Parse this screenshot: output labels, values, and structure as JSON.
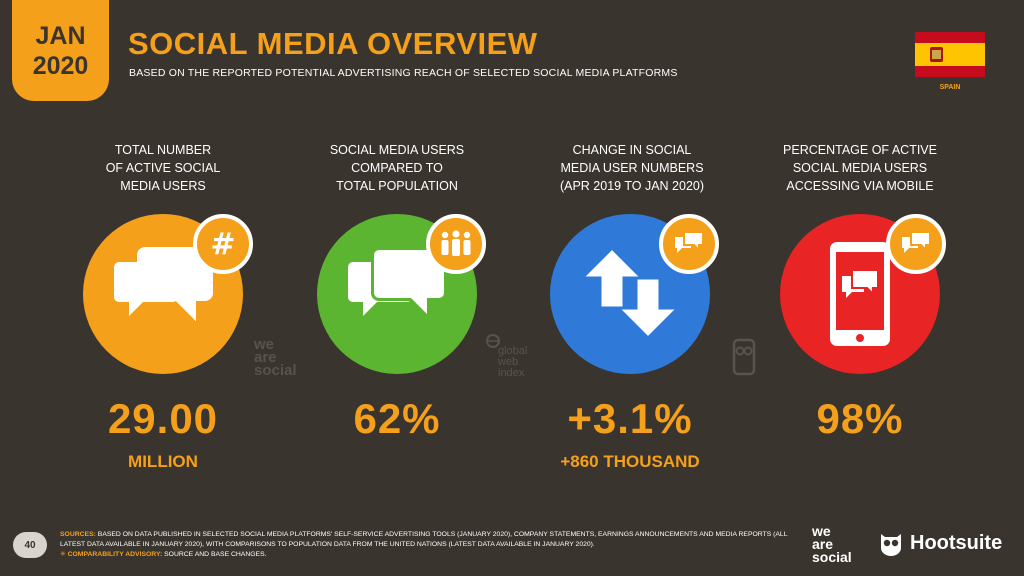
{
  "header": {
    "date_month": "JAN",
    "date_year": "2020",
    "title": "SOCIAL MEDIA OVERVIEW",
    "subtitle": "BASED ON THE REPORTED POTENTIAL ADVERTISING REACH OF SELECTED SOCIAL MEDIA PLATFORMS",
    "country": "SPAIN"
  },
  "colors": {
    "accent": "#f5a01a",
    "background": "#3a342f",
    "orange": "#f5a01a",
    "green": "#5cb531",
    "blue": "#2f7ad8",
    "red": "#e82424"
  },
  "stats": [
    {
      "label_lines": [
        "TOTAL NUMBER",
        "OF ACTIVE SOCIAL",
        "MEDIA USERS"
      ],
      "value": "29.00",
      "sub": "MILLION",
      "icon": "chat-bubbles-icon",
      "badge_icon": "hashtag-icon"
    },
    {
      "label_lines": [
        "SOCIAL MEDIA USERS",
        "COMPARED TO",
        "TOTAL POPULATION"
      ],
      "value": "62%",
      "sub": "",
      "icon": "chat-bubbles-icon",
      "badge_icon": "people-icon"
    },
    {
      "label_lines": [
        "CHANGE IN SOCIAL",
        "MEDIA USER NUMBERS",
        "(APR 2019 TO JAN 2020)"
      ],
      "value": "+3.1%",
      "sub": "+860 THOUSAND",
      "icon": "up-down-arrows-icon",
      "badge_icon": "chat-bubbles-icon"
    },
    {
      "label_lines": [
        "PERCENTAGE OF ACTIVE",
        "SOCIAL MEDIA USERS",
        "ACCESSING VIA MOBILE"
      ],
      "value": "98%",
      "sub": "",
      "icon": "mobile-phone-icon",
      "badge_icon": "chat-bubbles-icon"
    }
  ],
  "watermarks": {
    "wearesocial": [
      "we",
      "are",
      "social"
    ],
    "gwi": [
      "global",
      "web",
      "index"
    ]
  },
  "footer": {
    "page_number": "40",
    "sources_label": "SOURCES:",
    "sources_text": "BASED ON DATA PUBLISHED IN SELECTED SOCIAL MEDIA PLATFORMS' SELF-SERVICE ADVERTISING TOOLS (JANUARY 2020), COMPANY STATEMENTS, EARNINGS ANNOUNCEMENTS AND MEDIA REPORTS (ALL LATEST DATA AVAILABLE IN JANUARY 2020), WITH COMPARISONS TO POPULATION DATA FROM THE UNITED NATIONS (LATEST DATA AVAILABLE IN JANUARY 2020).",
    "advisory_label": "COMPARABILITY ADVISORY:",
    "advisory_text": "SOURCE AND BASE CHANGES.",
    "logo_wearesocial": [
      "we",
      "are",
      "social"
    ],
    "logo_hootsuite": "Hootsuite"
  }
}
